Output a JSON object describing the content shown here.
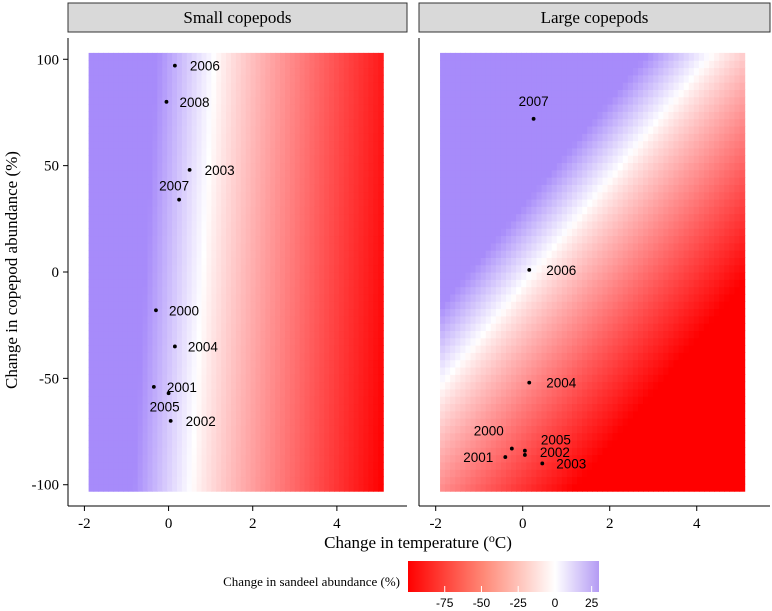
{
  "chart_data": {
    "type": "heatmap",
    "xlabel_prefix": "Change in temperature (",
    "xlabel_sup": "o",
    "xlabel_suffix": "C)",
    "ylabel": "Change in copepod abundance (%)",
    "xlim": [
      -2.2,
      5.5
    ],
    "ylim": [
      -110,
      110
    ],
    "x_ticks": [
      -2,
      0,
      2,
      4
    ],
    "x_tick_labels": [
      "-2",
      "0",
      "2",
      "4"
    ],
    "y_ticks": [
      -100,
      -50,
      0,
      50,
      100
    ],
    "y_tick_labels": [
      "-100",
      "-50",
      "0",
      "50",
      "100"
    ],
    "grid_x_range": [
      -1.9,
      5.1
    ],
    "grid_y_range": [
      -103,
      103
    ],
    "legend": {
      "title": "Change in sandeel abundance (%)",
      "range": [
        -100,
        30
      ],
      "ticks": [
        -75,
        -50,
        -25,
        0,
        25
      ],
      "tick_labels": [
        "-75",
        "-50",
        "-25",
        "0",
        "25"
      ],
      "placement": "bottom-center"
    },
    "color_scale": {
      "low": "#ff0000",
      "mid": "#ffffff",
      "high": "#a78bfa"
    },
    "panels": [
      {
        "title": "Small copepods",
        "model": "small",
        "points": [
          {
            "year": "2006",
            "x": 0.15,
            "y": 97
          },
          {
            "year": "2008",
            "x": -0.05,
            "y": 80
          },
          {
            "year": "2003",
            "x": 0.5,
            "y": 48
          },
          {
            "year": "2007",
            "x": 0.25,
            "y": 34
          },
          {
            "year": "2000",
            "x": -0.3,
            "y": -18
          },
          {
            "year": "2004",
            "x": 0.15,
            "y": -35
          },
          {
            "year": "2001",
            "x": -0.35,
            "y": -54
          },
          {
            "year": "2005",
            "x": 0.0,
            "y": -57
          },
          {
            "year": "2002",
            "x": 0.05,
            "y": -70
          }
        ]
      },
      {
        "title": "Large copepods",
        "model": "large",
        "points": [
          {
            "year": "2007",
            "x": 0.25,
            "y": 72
          },
          {
            "year": "2006",
            "x": 0.15,
            "y": 1
          },
          {
            "year": "2004",
            "x": 0.15,
            "y": -52
          },
          {
            "year": "2000",
            "x": -0.25,
            "y": -83
          },
          {
            "year": "2005",
            "x": 0.05,
            "y": -84
          },
          {
            "year": "2002",
            "x": 0.05,
            "y": -86
          },
          {
            "year": "2001",
            "x": -0.4,
            "y": -87
          },
          {
            "year": "2003",
            "x": 0.45,
            "y": -90
          }
        ]
      }
    ]
  }
}
